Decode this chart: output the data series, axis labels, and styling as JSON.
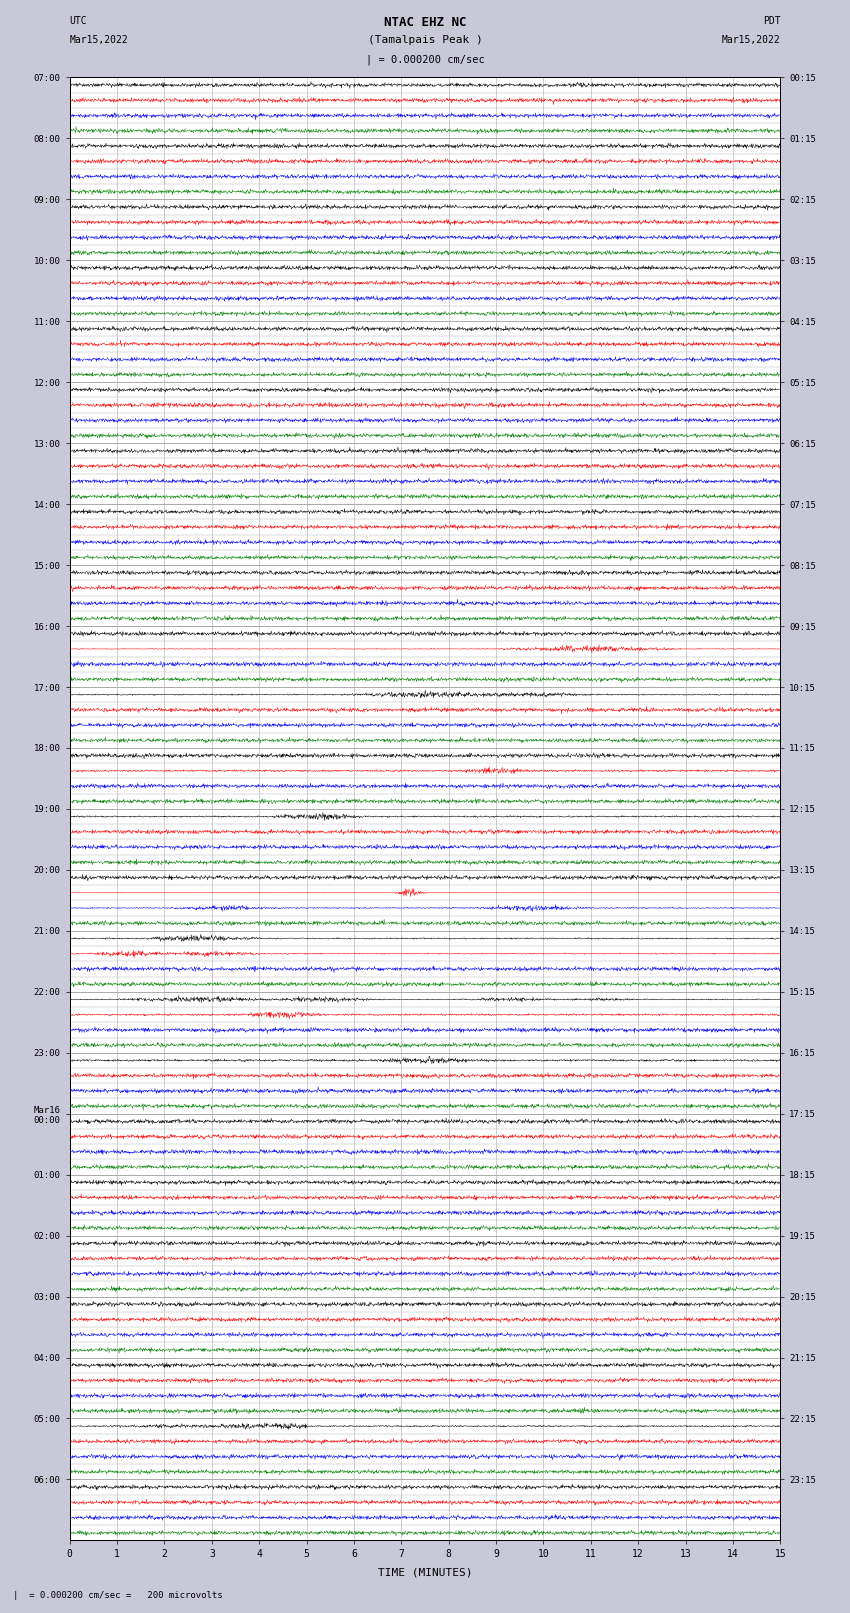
{
  "title_line1": "NTAC EHZ NC",
  "title_line2": "(Tamalpais Peak )",
  "title_line3": "| = 0.000200 cm/sec",
  "left_label_top": "UTC",
  "left_label_date": "Mar15,2022",
  "right_label_top": "PDT",
  "right_label_date": "Mar15,2022",
  "bottom_label": "TIME (MINUTES)",
  "footer_text": "|  = 0.000200 cm/sec =   200 microvolts",
  "utc_labels": [
    "07:00",
    "08:00",
    "09:00",
    "10:00",
    "11:00",
    "12:00",
    "13:00",
    "14:00",
    "15:00",
    "16:00",
    "17:00",
    "18:00",
    "19:00",
    "20:00",
    "21:00",
    "22:00",
    "23:00",
    "Mar16\n00:00",
    "01:00",
    "02:00",
    "03:00",
    "04:00",
    "05:00",
    "06:00"
  ],
  "pdt_labels": [
    "00:15",
    "01:15",
    "02:15",
    "03:15",
    "04:15",
    "05:15",
    "06:15",
    "07:15",
    "08:15",
    "09:15",
    "10:15",
    "11:15",
    "12:15",
    "13:15",
    "14:15",
    "15:15",
    "16:15",
    "17:15",
    "18:15",
    "19:15",
    "20:15",
    "21:15",
    "22:15",
    "23:15"
  ],
  "colors": [
    "black",
    "red",
    "blue",
    "green"
  ],
  "bg_color": "#c8c8d8",
  "plot_bg": "white",
  "grid_color": "#aaaaaa",
  "n_hours": 24,
  "traces_per_hour": 4,
  "n_minutes": 15,
  "samples_per_trace": 1800,
  "base_noise": 0.003,
  "row_amplitude": 0.35,
  "seed": 12345
}
